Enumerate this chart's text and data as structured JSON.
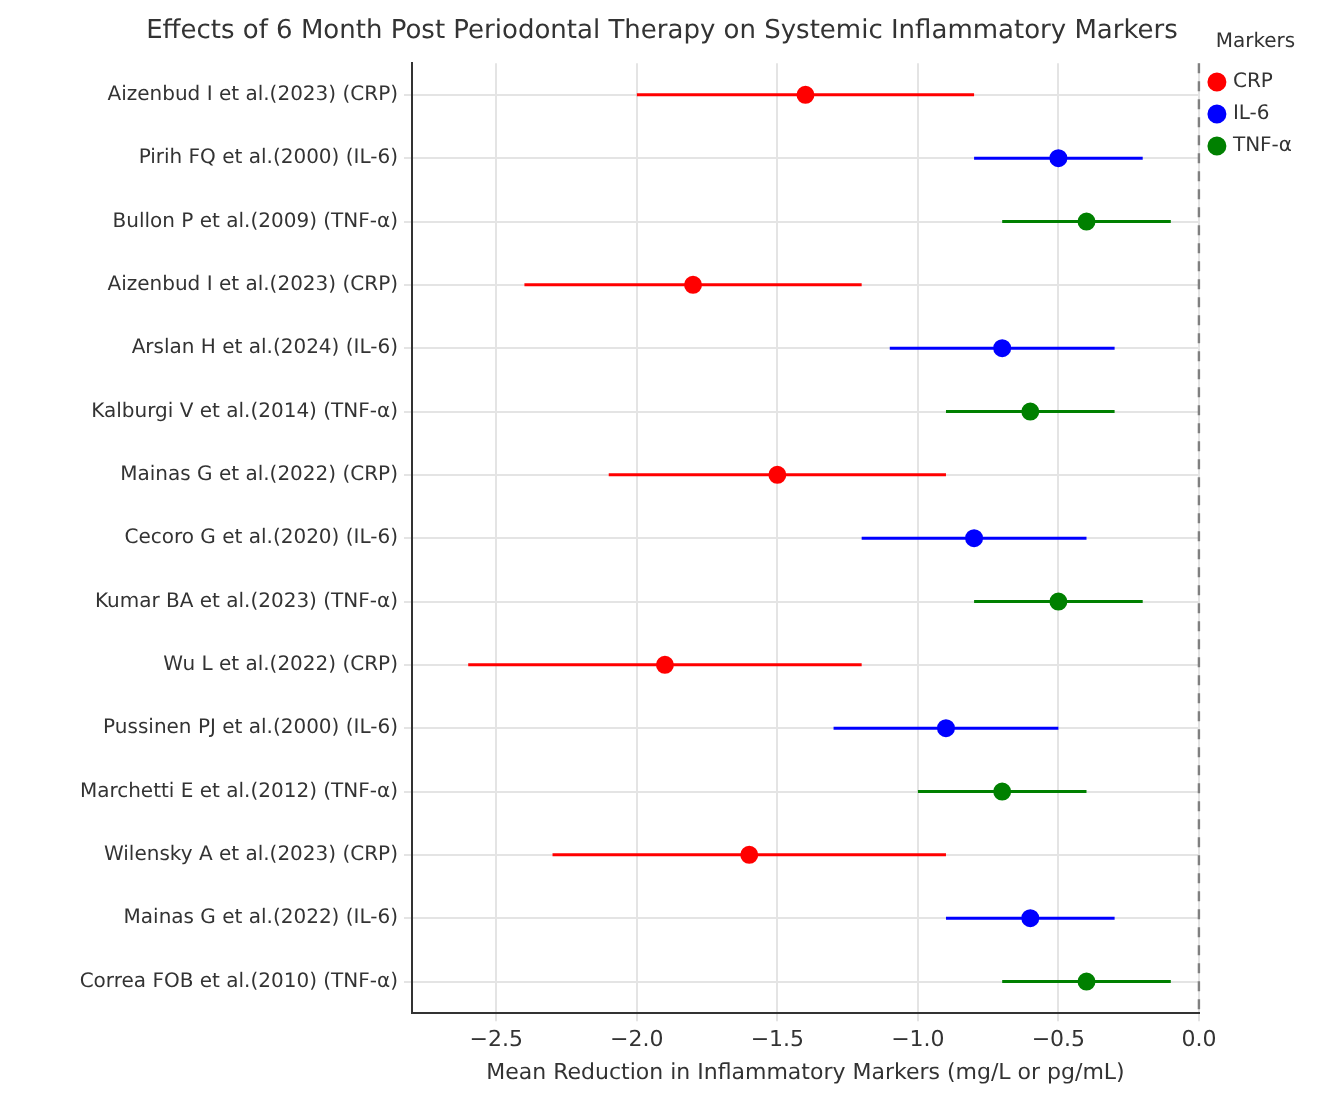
{
  "chart_data": {
    "type": "scatter",
    "orientation": "horizontal",
    "title": "Effects of 6 Month Post Periodontal Therapy on Systemic Inflammatory Markers",
    "xlabel": "Mean Reduction in Inflammatory Markers (mg/L or pg/mL)",
    "legend_title": "Markers",
    "legend": "top right",
    "grid": true,
    "marker": "circle",
    "categories": [
      "Aizenbud I et al.(2023) (CRP)",
      "Pirih FQ et al.(2000) (IL-6)",
      "Bullon P et al.(2009) (TNF-α)",
      "Aizenbud I et al.(2023) (CRP)",
      "Arslan H et al.(2024) (IL-6)",
      "Kalburgi V et al.(2014) (TNF-α)",
      "Mainas G et al.(2022) (CRP)",
      "Cecoro G et al.(2020) (IL-6)",
      "Kumar BA et al.(2023) (TNF-α)",
      "Wu L et al.(2022) (CRP)",
      "Pussinen PJ et al.(2000) (IL-6)",
      "Marchetti E et al.(2012) (TNF-α)",
      "Wilensky A et al.(2023) (CRP)",
      "Mainas G et al.(2022) (IL-6)",
      "Correa FOB et al.(2010) (TNF-α)"
    ],
    "xlim": [
      -2.8,
      0
    ],
    "xticks": [
      {
        "value": -2.5,
        "label": "−2.5"
      },
      {
        "value": -2,
        "label": "−2.0"
      },
      {
        "value": -1.5,
        "label": "−1.5"
      },
      {
        "value": -1,
        "label": "−1.0"
      },
      {
        "value": -0.5,
        "label": "−0.5"
      },
      {
        "value": 0,
        "label": "0.0"
      }
    ],
    "ref_lines": [
      {
        "axis": "x",
        "value": 0,
        "color": "#808080",
        "line_style": "dashed"
      }
    ],
    "series": [
      {
        "name": "CRP",
        "color": "#ff0000",
        "values": [
          -1.4,
          null,
          null,
          -1.8,
          null,
          null,
          -1.5,
          null,
          null,
          -1.9,
          null,
          null,
          -1.6,
          null,
          null
        ],
        "errors": [
          [
            -2.0,
            -0.8
          ],
          null,
          null,
          [
            -2.4,
            -1.2
          ],
          null,
          null,
          [
            -2.1,
            -0.9
          ],
          null,
          null,
          [
            -2.6,
            -1.2
          ],
          null,
          null,
          [
            -2.3,
            -0.9
          ],
          null,
          null
        ]
      },
      {
        "name": "IL-6",
        "color": "#0000ff",
        "values": [
          null,
          -0.5,
          null,
          null,
          -0.7,
          null,
          null,
          -0.8,
          null,
          null,
          -0.9,
          null,
          null,
          -0.6,
          null
        ],
        "errors": [
          null,
          [
            -0.8,
            -0.2
          ],
          null,
          null,
          [
            -1.1,
            -0.3
          ],
          null,
          null,
          [
            -1.2,
            -0.4
          ],
          null,
          null,
          [
            -1.3,
            -0.5
          ],
          null,
          null,
          [
            -0.9,
            -0.3
          ],
          null
        ]
      },
      {
        "name": "TNF-α",
        "color": "#008000",
        "values": [
          null,
          null,
          -0.4,
          null,
          null,
          -0.6,
          null,
          null,
          -0.5,
          null,
          null,
          -0.7,
          null,
          null,
          -0.4
        ],
        "errors": [
          null,
          null,
          [
            -0.7,
            -0.1
          ],
          null,
          null,
          [
            -0.9,
            -0.3
          ],
          null,
          null,
          [
            -0.8,
            -0.2
          ],
          null,
          null,
          [
            -1.0,
            -0.4
          ],
          null,
          null,
          [
            -0.7,
            -0.1
          ]
        ]
      }
    ]
  }
}
